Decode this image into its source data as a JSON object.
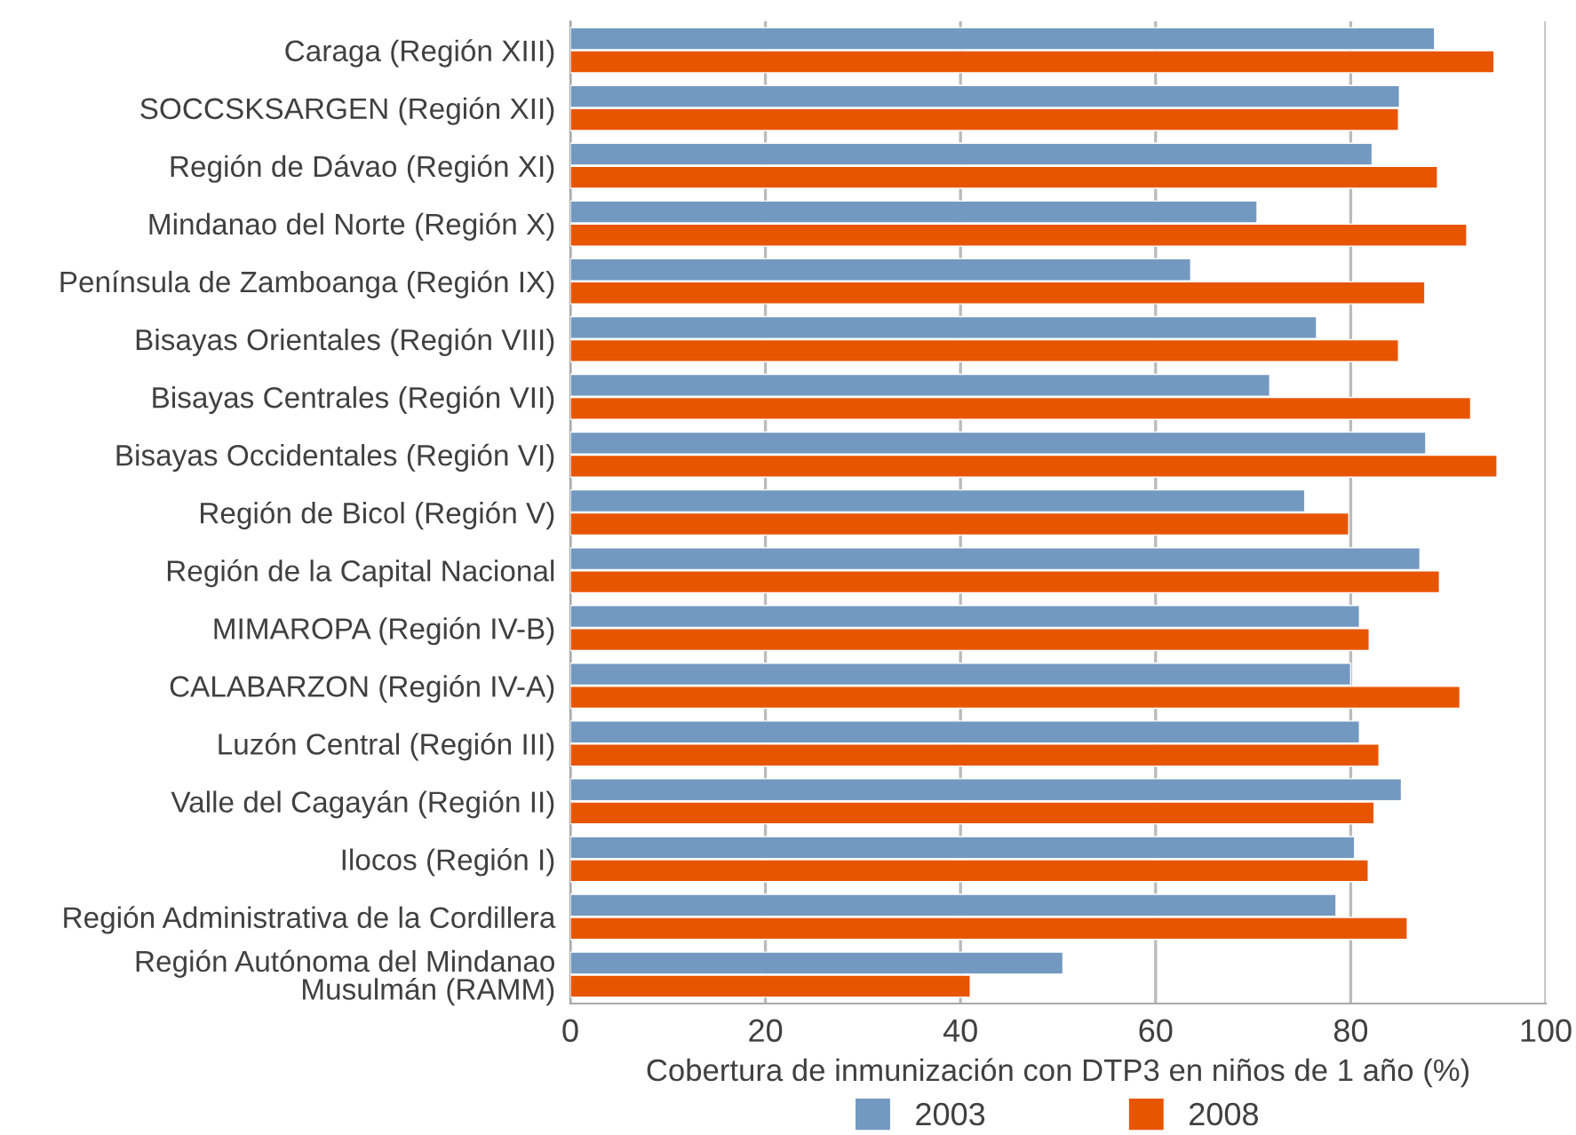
{
  "chart_data": {
    "type": "bar",
    "orientation": "horizontal",
    "xlabel": "Cobertura de inmunización con DTP3 en niños de 1 año (%)",
    "categories": [
      "Caraga (Región XIII)",
      "SOCCSKSARGEN (Región XII)",
      "Región de Dávao (Región XI)",
      "Mindanao del Norte (Región X)",
      "Península de Zamboanga (Región IX)",
      "Bisayas Orientales (Región VIII)",
      "Bisayas Centrales (Región VII)",
      "Bisayas Occidentales (Región VI)",
      "Región de Bicol (Región V)",
      "Región de la Capital Nacional",
      "MIMAROPA (Región IV-B)",
      "CALABARZON (Región IV-A)",
      "Luzón Central (Región III)",
      "Valle del Cagayán (Región II)",
      "Ilocos (Región I)",
      "Región Administrativa de la Cordillera",
      "Región Autónoma del Mindanao\nMusulmán (RAMM)"
    ],
    "series": [
      {
        "name": "2003",
        "color": "#7399c0",
        "values": [
          88.6,
          85.0,
          82.2,
          70.4,
          63.6,
          76.5,
          71.7,
          87.7,
          75.3,
          87.1,
          80.9,
          80.0,
          80.9,
          85.2,
          80.4,
          78.5,
          50.5
        ]
      },
      {
        "name": "2008",
        "color": "#e85500",
        "values": [
          94.7,
          84.9,
          88.9,
          91.9,
          87.6,
          84.9,
          92.3,
          95.0,
          79.8,
          89.1,
          81.9,
          91.2,
          82.9,
          82.4,
          81.8,
          85.8,
          41.0
        ]
      }
    ],
    "xlim": [
      0,
      100
    ],
    "xticks": [
      0,
      20,
      40,
      60,
      80,
      100
    ],
    "grid": "x",
    "legend": "bottom"
  }
}
